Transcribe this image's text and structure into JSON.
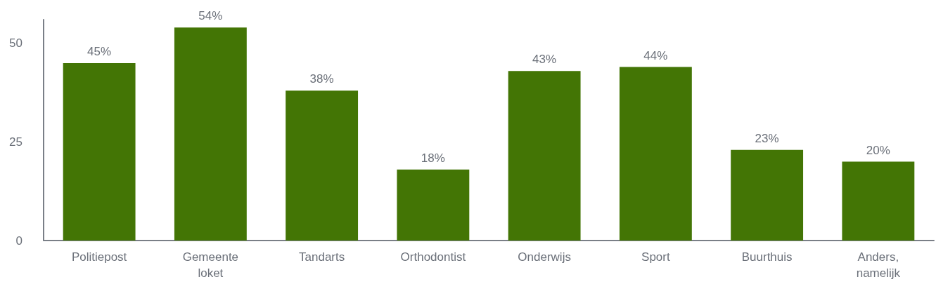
{
  "chart_data": {
    "type": "bar",
    "categories": [
      "Politiepost",
      "Gemeente loket",
      "Tandarts",
      "Orthodontist",
      "Onderwijs",
      "Sport",
      "Buurthuis",
      "Anders, namelijk"
    ],
    "values": [
      45,
      54,
      38,
      18,
      43,
      44,
      23,
      20
    ],
    "color": "#437505",
    "value_labels": [
      "45%",
      "54%",
      "38%",
      "18%",
      "43%",
      "44%",
      "23%",
      "20%"
    ],
    "ylim": [
      0,
      56
    ],
    "yticks": [
      0,
      25,
      50
    ],
    "grid": false
  }
}
